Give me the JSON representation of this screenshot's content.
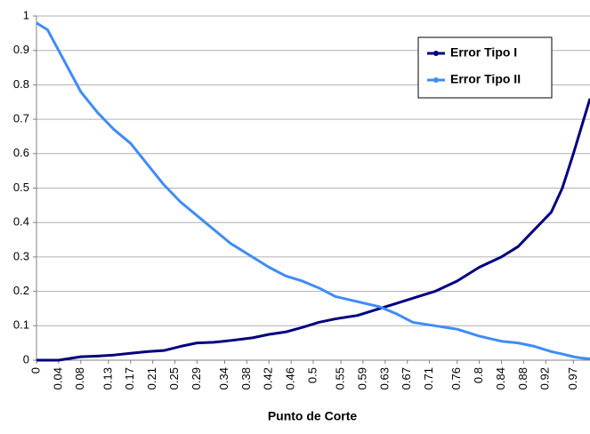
{
  "chart_data": {
    "type": "line",
    "x_label": "Punto de Corte",
    "x": [
      0,
      0.02,
      0.04,
      0.08,
      0.11,
      0.14,
      0.17,
      0.2,
      0.23,
      0.26,
      0.29,
      0.32,
      0.35,
      0.39,
      0.42,
      0.45,
      0.48,
      0.51,
      0.54,
      0.58,
      0.62,
      0.65,
      0.68,
      0.72,
      0.76,
      0.8,
      0.84,
      0.87,
      0.9,
      0.93,
      0.95,
      0.97,
      0.985,
      1.0
    ],
    "series": [
      {
        "name": "Error Tipo I",
        "color": "#000080",
        "values": [
          0,
          0,
          0,
          0.01,
          0.012,
          0.015,
          0.02,
          0.025,
          0.028,
          0.04,
          0.05,
          0.052,
          0.057,
          0.065,
          0.075,
          0.082,
          0.095,
          0.11,
          0.12,
          0.13,
          0.15,
          0.165,
          0.18,
          0.2,
          0.23,
          0.27,
          0.3,
          0.33,
          0.38,
          0.43,
          0.5,
          0.6,
          0.68,
          0.76
        ]
      },
      {
        "name": "Error Tipo II",
        "color": "#3f8cf5",
        "values": [
          0.98,
          0.96,
          0.9,
          0.78,
          0.72,
          0.67,
          0.63,
          0.57,
          0.51,
          0.46,
          0.42,
          0.38,
          0.34,
          0.3,
          0.27,
          0.245,
          0.23,
          0.21,
          0.185,
          0.17,
          0.155,
          0.135,
          0.11,
          0.1,
          0.09,
          0.07,
          0.055,
          0.05,
          0.04,
          0.025,
          0.018,
          0.01,
          0.006,
          0.004
        ]
      }
    ],
    "xlim": [
      0,
      1
    ],
    "xticks": [
      0,
      0.04,
      0.08,
      0.13,
      0.17,
      0.21,
      0.25,
      0.29,
      0.34,
      0.38,
      0.42,
      0.46,
      0.5,
      0.55,
      0.59,
      0.63,
      0.67,
      0.71,
      0.76,
      0.8,
      0.84,
      0.88,
      0.92,
      0.97
    ],
    "ylim": [
      0,
      1
    ],
    "yticks": [
      0,
      0.1,
      0.2,
      0.3,
      0.4,
      0.5,
      0.6,
      0.7,
      0.8,
      0.9,
      1
    ],
    "grid": true,
    "legend": "upper-right"
  }
}
